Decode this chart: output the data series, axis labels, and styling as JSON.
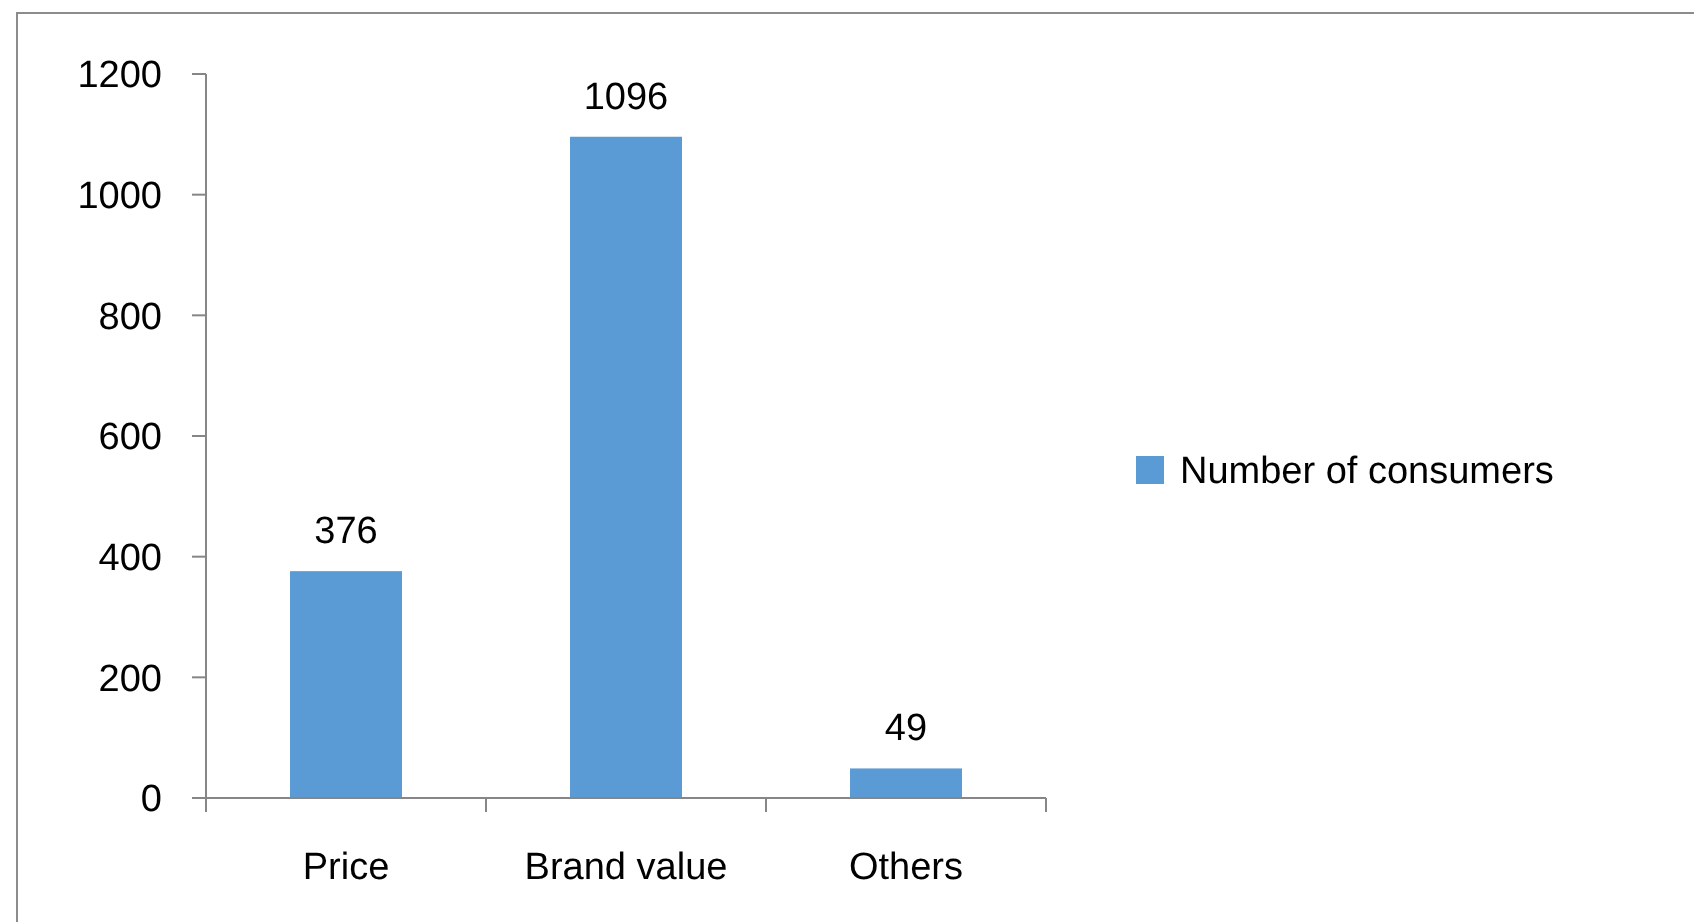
{
  "chart_data": {
    "type": "bar",
    "categories": [
      "Price",
      "Brand value",
      "Others"
    ],
    "series": [
      {
        "name": "Number of consumers",
        "color": "#5b9bd5",
        "values": [
          376,
          1096,
          49
        ]
      }
    ],
    "ylim": [
      0,
      1200
    ],
    "yticks": [
      0,
      200,
      400,
      600,
      800,
      1000,
      1200
    ],
    "grid": false,
    "legend": "right",
    "data_labels": true
  }
}
